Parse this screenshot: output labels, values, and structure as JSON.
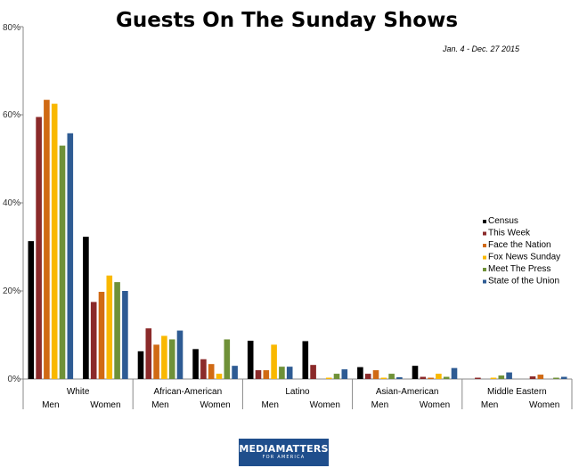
{
  "chart_data": {
    "type": "bar",
    "title": "Guests On The Sunday Shows",
    "subtitle": "Jan. 4 - Dec. 27 2015",
    "ylim": [
      0,
      80
    ],
    "yticks": [
      "0%",
      "20%",
      "40%",
      "60%",
      "80%"
    ],
    "groups": [
      "White",
      "African-American",
      "Latino",
      "Asian-American",
      "Middle Eastern"
    ],
    "subgroups": [
      "Men",
      "Women"
    ],
    "categories": [
      "White Men",
      "White Women",
      "African-American Men",
      "African-American Women",
      "Latino Men",
      "Latino Women",
      "Asian-American Men",
      "Asian-American Women",
      "Middle Eastern Men",
      "Middle Eastern Women"
    ],
    "legend_position": "right",
    "series": [
      {
        "name": "Census",
        "color": "#000000",
        "values": [
          31.3,
          32.3,
          6.3,
          6.8,
          8.7,
          8.6,
          2.7,
          3.0,
          0.0,
          0.0
        ]
      },
      {
        "name": "This Week",
        "color": "#8b2a2a",
        "values": [
          59.5,
          17.5,
          11.5,
          4.5,
          2.0,
          3.2,
          1.2,
          0.5,
          0.3,
          0.6
        ]
      },
      {
        "name": "Face the Nation",
        "color": "#d06a14",
        "values": [
          63.4,
          19.8,
          7.8,
          3.4,
          2.0,
          0.0,
          2.0,
          0.3,
          0.0,
          1.0
        ]
      },
      {
        "name": "Fox News Sunday",
        "color": "#f9b800",
        "values": [
          62.5,
          23.5,
          9.8,
          1.2,
          7.8,
          0.3,
          0.3,
          1.2,
          0.3,
          0.0
        ]
      },
      {
        "name": "Meet The Press",
        "color": "#6f9138",
        "values": [
          53.0,
          22.0,
          9.0,
          9.0,
          2.8,
          1.2,
          1.2,
          0.5,
          0.8,
          0.3
        ]
      },
      {
        "name": "State of the Union",
        "color": "#2e5b93",
        "values": [
          55.8,
          20.0,
          11.0,
          3.0,
          2.8,
          2.2,
          0.4,
          2.5,
          1.5,
          0.5
        ]
      }
    ]
  },
  "logo": {
    "main": "MEDIAMATTERS",
    "sub": "FOR AMERICA"
  }
}
